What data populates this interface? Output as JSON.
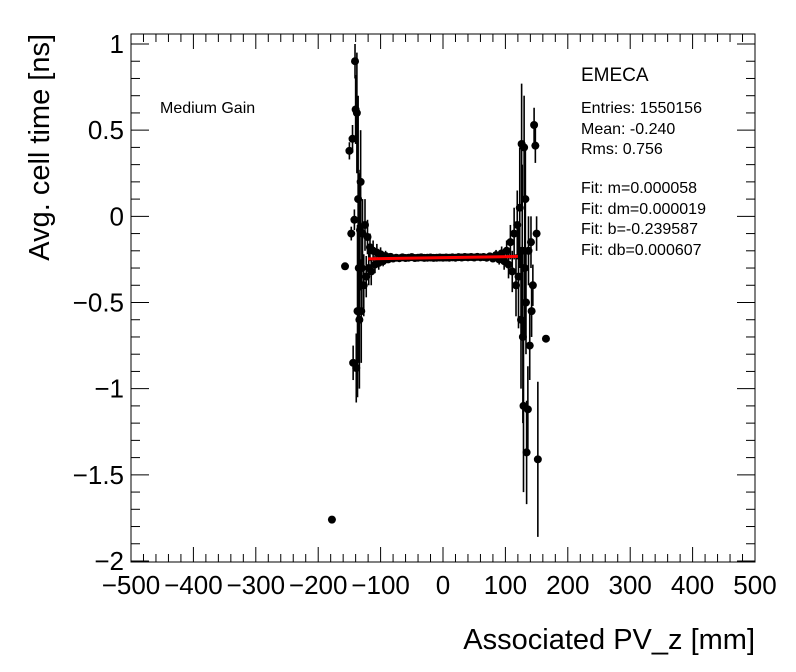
{
  "chart_data": {
    "type": "scatter",
    "title": "",
    "xlabel": "Associated PV_z [mm]",
    "ylabel": "Avg. cell time [ns]",
    "xlim": [
      -500,
      500
    ],
    "ylim": [
      -2,
      1.05
    ],
    "x_ticks": [
      -500,
      -400,
      -300,
      -200,
      -100,
      0,
      100,
      200,
      300,
      400,
      500
    ],
    "y_ticks": [
      -2,
      -1.5,
      -1,
      -0.5,
      0,
      0.5,
      1
    ],
    "x_tick_labels": [
      "−500",
      "−400",
      "−300",
      "−200",
      "−100",
      "0",
      "100",
      "200",
      "300",
      "400",
      "500"
    ],
    "y_tick_labels": [
      "−2",
      "−1.5",
      "−1",
      "−0.5",
      "0",
      "0.5",
      "1"
    ],
    "gain_label": "Medium Gain",
    "stats": {
      "header": "EMECA",
      "lines": [
        "Entries: 1550156",
        "Mean: -0.240",
        "Rms: 0.756",
        "",
        "Fit: m=0.000058",
        "Fit: dm=0.000019",
        "Fit: b=-0.239587",
        "Fit: db=0.000607"
      ]
    },
    "fit": {
      "m": 5.8e-05,
      "b": -0.239587,
      "x_range": [
        -120,
        120
      ],
      "color": "#ff0000"
    },
    "points": [
      {
        "x": -178,
        "y": -1.76,
        "err": 0
      },
      {
        "x": -157,
        "y": -0.29,
        "err": 0
      },
      {
        "x": -150,
        "y": 0.38,
        "err": 0.05
      },
      {
        "x": -147,
        "y": -0.1,
        "err": 0.04
      },
      {
        "x": -145,
        "y": 0.45,
        "err": 0.08
      },
      {
        "x": -144,
        "y": -0.85,
        "err": 0.1
      },
      {
        "x": -142,
        "y": -0.02,
        "err": 0.06
      },
      {
        "x": -141,
        "y": 0.9,
        "err": 0.1
      },
      {
        "x": -140,
        "y": 0.62,
        "err": 0.2
      },
      {
        "x": -139,
        "y": -0.88,
        "err": 0.2
      },
      {
        "x": -138,
        "y": 0.6,
        "err": 0.35
      },
      {
        "x": -137,
        "y": -0.55,
        "err": 0.5
      },
      {
        "x": -136,
        "y": 0.1,
        "err": 0.6
      },
      {
        "x": -135,
        "y": -0.3,
        "err": 0.55
      },
      {
        "x": -134,
        "y": -0.6,
        "err": 0.4
      },
      {
        "x": -133,
        "y": -0.08,
        "err": 0.35
      },
      {
        "x": -132,
        "y": 0.2,
        "err": 0.3
      },
      {
        "x": -131,
        "y": -0.55,
        "err": 0.3
      },
      {
        "x": -130,
        "y": -0.3,
        "err": 0.25
      },
      {
        "x": -129,
        "y": -0.1,
        "err": 0.2
      },
      {
        "x": -127,
        "y": -0.4,
        "err": 0.18
      },
      {
        "x": -125,
        "y": -0.05,
        "err": 0.15
      },
      {
        "x": -123,
        "y": -0.35,
        "err": 0.12
      },
      {
        "x": -121,
        "y": -0.12,
        "err": 0.1
      },
      {
        "x": -119,
        "y": -0.3,
        "err": 0.1
      },
      {
        "x": -117,
        "y": -0.18,
        "err": 0.08
      },
      {
        "x": -115,
        "y": -0.32,
        "err": 0.08
      },
      {
        "x": -112,
        "y": -0.2,
        "err": 0.06
      },
      {
        "x": -109,
        "y": -0.28,
        "err": 0.05
      },
      {
        "x": -106,
        "y": -0.21,
        "err": 0.05
      },
      {
        "x": -103,
        "y": -0.27,
        "err": 0.04
      },
      {
        "x": -100,
        "y": -0.22,
        "err": 0.04
      },
      {
        "x": -96,
        "y": -0.26,
        "err": 0.03
      },
      {
        "x": -92,
        "y": -0.23,
        "err": 0.03
      },
      {
        "x": -88,
        "y": -0.25,
        "err": 0.02
      },
      {
        "x": -84,
        "y": -0.235,
        "err": 0.02
      },
      {
        "x": -80,
        "y": -0.245,
        "err": 0.02
      },
      {
        "x": -75,
        "y": -0.24,
        "err": 0.015
      },
      {
        "x": -70,
        "y": -0.243,
        "err": 0.01
      },
      {
        "x": -65,
        "y": -0.238,
        "err": 0.01
      },
      {
        "x": -60,
        "y": -0.242,
        "err": 0.01
      },
      {
        "x": -55,
        "y": -0.24,
        "err": 0.01
      },
      {
        "x": -50,
        "y": -0.237,
        "err": 0.01
      },
      {
        "x": -45,
        "y": -0.242,
        "err": 0.01
      },
      {
        "x": -40,
        "y": -0.24,
        "err": 0.01
      },
      {
        "x": -35,
        "y": -0.238,
        "err": 0.01
      },
      {
        "x": -30,
        "y": -0.241,
        "err": 0.01
      },
      {
        "x": -25,
        "y": -0.24,
        "err": 0.01
      },
      {
        "x": -20,
        "y": -0.239,
        "err": 0.01
      },
      {
        "x": -15,
        "y": -0.241,
        "err": 0.01
      },
      {
        "x": -10,
        "y": -0.24,
        "err": 0.01
      },
      {
        "x": -5,
        "y": -0.239,
        "err": 0.01
      },
      {
        "x": 0,
        "y": -0.24,
        "err": 0.01
      },
      {
        "x": 5,
        "y": -0.239,
        "err": 0.01
      },
      {
        "x": 10,
        "y": -0.24,
        "err": 0.01
      },
      {
        "x": 15,
        "y": -0.238,
        "err": 0.01
      },
      {
        "x": 20,
        "y": -0.24,
        "err": 0.01
      },
      {
        "x": 25,
        "y": -0.237,
        "err": 0.01
      },
      {
        "x": 30,
        "y": -0.239,
        "err": 0.01
      },
      {
        "x": 35,
        "y": -0.236,
        "err": 0.01
      },
      {
        "x": 40,
        "y": -0.238,
        "err": 0.01
      },
      {
        "x": 45,
        "y": -0.236,
        "err": 0.01
      },
      {
        "x": 50,
        "y": -0.239,
        "err": 0.01
      },
      {
        "x": 55,
        "y": -0.235,
        "err": 0.01
      },
      {
        "x": 60,
        "y": -0.238,
        "err": 0.01
      },
      {
        "x": 65,
        "y": -0.236,
        "err": 0.012
      },
      {
        "x": 70,
        "y": -0.24,
        "err": 0.015
      },
      {
        "x": 75,
        "y": -0.232,
        "err": 0.02
      },
      {
        "x": 80,
        "y": -0.245,
        "err": 0.02
      },
      {
        "x": 85,
        "y": -0.225,
        "err": 0.03
      },
      {
        "x": 90,
        "y": -0.25,
        "err": 0.03
      },
      {
        "x": 94,
        "y": -0.215,
        "err": 0.04
      },
      {
        "x": 98,
        "y": -0.26,
        "err": 0.05
      },
      {
        "x": 102,
        "y": -0.2,
        "err": 0.06
      },
      {
        "x": 105,
        "y": -0.28,
        "err": 0.08
      },
      {
        "x": 108,
        "y": -0.15,
        "err": 0.1
      },
      {
        "x": 111,
        "y": -0.32,
        "err": 0.12
      },
      {
        "x": 114,
        "y": -0.1,
        "err": 0.15
      },
      {
        "x": 117,
        "y": -0.4,
        "err": 0.18
      },
      {
        "x": 119,
        "y": -0.05,
        "err": 0.2
      },
      {
        "x": 121,
        "y": -0.35,
        "err": 0.3
      },
      {
        "x": 123,
        "y": 0.05,
        "err": 0.35
      },
      {
        "x": 125,
        "y": -0.6,
        "err": 0.4
      },
      {
        "x": 126,
        "y": 0.42,
        "err": 0.35
      },
      {
        "x": 127,
        "y": -0.2,
        "err": 0.5
      },
      {
        "x": 128,
        "y": -0.7,
        "err": 0.5
      },
      {
        "x": 129,
        "y": -1.1,
        "err": 0.5
      },
      {
        "x": 130,
        "y": 0.4,
        "err": 0.3
      },
      {
        "x": 131,
        "y": -0.3,
        "err": 0.4
      },
      {
        "x": 132,
        "y": 0.1,
        "err": 0.3
      },
      {
        "x": 133,
        "y": -0.5,
        "err": 0.3
      },
      {
        "x": 134,
        "y": -1.37,
        "err": 0.3
      },
      {
        "x": 136,
        "y": -1.12,
        "err": 0.25
      },
      {
        "x": 137,
        "y": -0.2,
        "err": 0.2
      },
      {
        "x": 139,
        "y": -0.75,
        "err": 0.2
      },
      {
        "x": 141,
        "y": -0.15,
        "err": 0.15
      },
      {
        "x": 142,
        "y": -0.55,
        "err": 0.15
      },
      {
        "x": 144,
        "y": -0.4,
        "err": 0.12
      },
      {
        "x": 146,
        "y": 0.53,
        "err": 0.1
      },
      {
        "x": 148,
        "y": 0.41,
        "err": 0.1
      },
      {
        "x": 150,
        "y": -0.1,
        "err": 0.1
      },
      {
        "x": 152,
        "y": -1.41,
        "err": 0.45
      },
      {
        "x": 165,
        "y": -0.71,
        "err": 0
      }
    ]
  }
}
